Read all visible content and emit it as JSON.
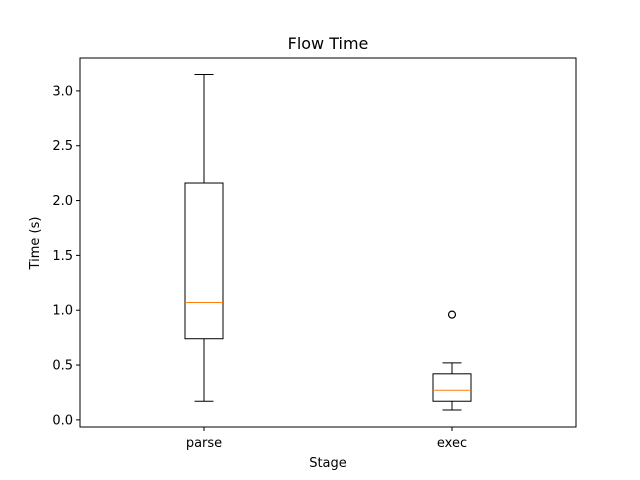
{
  "chart_data": {
    "type": "box",
    "title": "Flow Time",
    "xlabel": "Stage",
    "ylabel": "Time (s)",
    "ylim": [
      -0.065,
      3.3
    ],
    "yticks": [
      "0.0",
      "0.5",
      "1.0",
      "1.5",
      "2.0",
      "2.5",
      "3.0"
    ],
    "ytick_values": [
      0.0,
      0.5,
      1.0,
      1.5,
      2.0,
      2.5,
      3.0
    ],
    "grid": false,
    "categories": [
      "parse",
      "exec"
    ],
    "boxes": [
      {
        "category": "parse",
        "whisker_low": 0.17,
        "q1": 0.74,
        "median": 1.07,
        "q3": 2.16,
        "whisker_high": 3.15,
        "outliers": []
      },
      {
        "category": "exec",
        "whisker_low": 0.09,
        "q1": 0.17,
        "median": 0.27,
        "q3": 0.42,
        "whisker_high": 0.52,
        "outliers": [
          0.96
        ]
      }
    ],
    "colors": {
      "box": "#000000",
      "median": "#ff7f0e",
      "background": "#ffffff"
    }
  }
}
